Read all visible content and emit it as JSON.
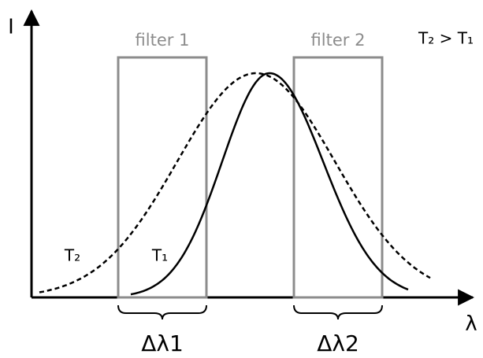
{
  "axes": {
    "y_label": "I",
    "x_label": "λ"
  },
  "filters": [
    {
      "label": "filter 1",
      "band_label": "Δλ1"
    },
    {
      "label": "filter 2",
      "band_label": "Δλ2"
    }
  ],
  "curves": [
    {
      "label": "T₂"
    },
    {
      "label": "T₁"
    }
  ],
  "relation": "T₂ > T₁"
}
